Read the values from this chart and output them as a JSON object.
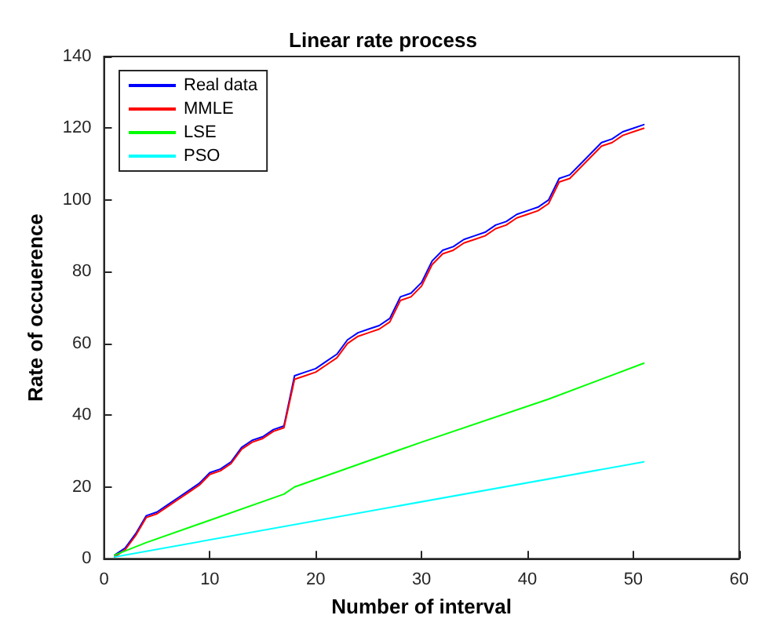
{
  "chart_data": {
    "type": "line",
    "title": "Linear rate process",
    "xlabel": "Number of interval",
    "ylabel": "Rate of occuerence",
    "x": [
      1,
      2,
      3,
      4,
      5,
      6,
      7,
      8,
      9,
      10,
      11,
      12,
      13,
      14,
      15,
      16,
      17,
      18,
      19,
      20,
      21,
      22,
      23,
      24,
      25,
      26,
      27,
      28,
      29,
      30,
      31,
      32,
      33,
      34,
      35,
      36,
      37,
      38,
      39,
      40,
      41,
      42,
      43,
      44,
      45,
      46,
      47,
      48,
      49,
      50,
      51
    ],
    "series": [
      {
        "name": "Real data",
        "color": "#0000ff",
        "values": [
          1,
          3,
          7,
          12,
          13,
          15,
          17,
          19,
          21,
          24,
          25,
          27,
          31,
          33,
          34,
          36,
          37,
          51,
          52,
          53,
          55,
          57,
          61,
          63,
          64,
          65,
          67,
          73,
          74,
          77,
          83,
          86,
          87,
          89,
          90,
          91,
          93,
          94,
          96,
          97,
          98,
          100,
          106,
          107,
          110,
          113,
          116,
          117,
          119,
          120,
          121
        ]
      },
      {
        "name": "MMLE",
        "color": "#ff0000",
        "values": [
          0.5,
          2.5,
          6.5,
          11.5,
          12.5,
          14.5,
          16.5,
          18.5,
          20.5,
          23.5,
          24.5,
          26.5,
          30.5,
          32.5,
          33.5,
          35.5,
          36.5,
          50,
          51,
          52,
          54,
          56,
          60,
          62,
          63,
          64,
          66,
          72,
          73,
          76,
          82,
          85,
          86,
          88,
          89,
          90,
          92,
          93,
          95,
          96,
          97,
          99,
          105,
          106,
          109,
          112,
          115,
          116,
          118,
          119,
          120
        ]
      },
      {
        "name": "LSE",
        "color": "#00ff00",
        "x": [
          1,
          4,
          17,
          18,
          30,
          42,
          51
        ],
        "values": [
          1,
          4.5,
          18,
          20,
          32.5,
          44.5,
          54.5
        ]
      },
      {
        "name": "PSO",
        "color": "#00ffff",
        "x": [
          1,
          51
        ],
        "values": [
          0.5,
          27
        ]
      }
    ],
    "xlim": [
      0,
      60
    ],
    "xticks": [
      0,
      10,
      20,
      30,
      40,
      50,
      60
    ],
    "ylim": [
      0,
      140
    ],
    "yticks": [
      0,
      20,
      40,
      60,
      80,
      100,
      120,
      140
    ],
    "grid": false,
    "legend": "top left",
    "marker": "none",
    "line_style": "solid"
  }
}
